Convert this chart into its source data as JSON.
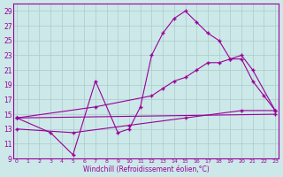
{
  "xlabel": "Windchill (Refroidissement éolien,°C)",
  "bg_color": "#cce8e8",
  "grid_color": "#aacccc",
  "line_color": "#990099",
  "xmin": 0,
  "xmax": 23,
  "ymin": 9,
  "ymax": 29,
  "line1_x": [
    0,
    23
  ],
  "line1_y": [
    14.5,
    15.0
  ],
  "line2_x": [
    0,
    3,
    5,
    7,
    9,
    10,
    11,
    12,
    13,
    14,
    15,
    16,
    17,
    18,
    19,
    20,
    21,
    22,
    23
  ],
  "line2_y": [
    14.5,
    12.5,
    9.5,
    19.5,
    12.5,
    13.0,
    16.0,
    23.0,
    26.0,
    28.0,
    29.0,
    27.5,
    26.0,
    25.0,
    22.5,
    22.5,
    19.5,
    17.5,
    15.5
  ],
  "line3_x": [
    0,
    7,
    12,
    13,
    14,
    15,
    16,
    17,
    18,
    19,
    20,
    21,
    23
  ],
  "line3_y": [
    14.5,
    16.0,
    17.5,
    18.5,
    19.5,
    20.0,
    21.0,
    22.0,
    22.0,
    22.5,
    23.0,
    21.0,
    15.5
  ],
  "line4_x": [
    0,
    5,
    10,
    15,
    20,
    23
  ],
  "line4_y": [
    13.0,
    12.5,
    13.5,
    14.5,
    15.5,
    15.5
  ]
}
